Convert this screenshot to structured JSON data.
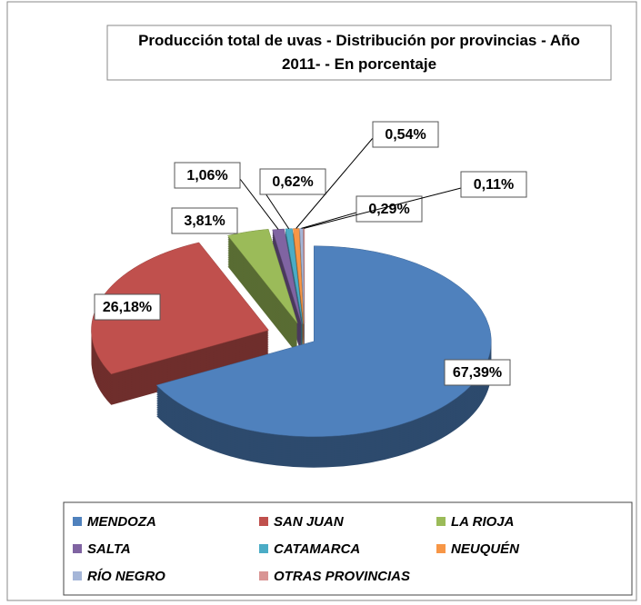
{
  "chart_data": {
    "type": "pie3d",
    "title": "Producción total de uvas - Distribución por provincias - Año 2011- - En porcentaje",
    "categories": [
      "MENDOZA",
      "SAN  JUAN",
      "LA RIOJA",
      "SALTA",
      "CATAMARCA",
      "NEUQUÉN",
      "RÍO  NEGRO",
      "OTRAS PROVINCIAS"
    ],
    "values": [
      67.39,
      26.18,
      3.81,
      1.06,
      0.62,
      0.54,
      0.29,
      0.11
    ],
    "value_labels": [
      "67,39%",
      "26,18%",
      "3,81%",
      "1,06%",
      "0,62%",
      "0,54%",
      "0,29%",
      "0,11%"
    ],
    "colors": [
      "#4f81bd",
      "#c0504d",
      "#9bbb59",
      "#8064a2",
      "#4bacc6",
      "#f79646",
      "#a5b6d8",
      "#d99594"
    ],
    "legend": "bottom"
  }
}
